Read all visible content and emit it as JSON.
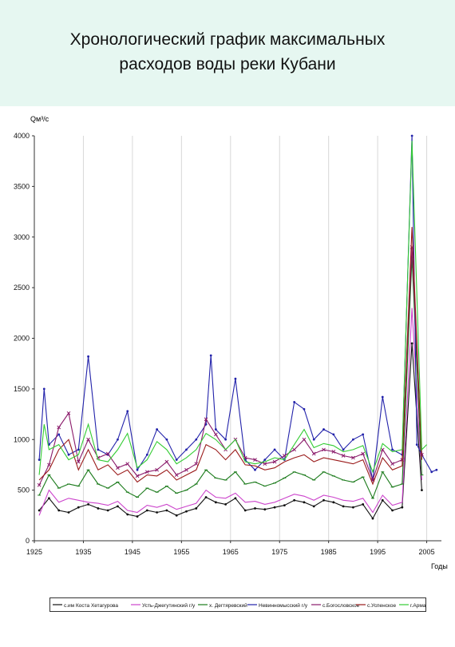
{
  "slide": {
    "title_line1": "Хронологический график максимальных",
    "title_line2": "расходов воды реки Кубани"
  },
  "chart_data": {
    "type": "line",
    "title": "",
    "ylabel": "Qм³/с",
    "xlabel": "Годы",
    "xlim": [
      1925,
      2008
    ],
    "ylim": [
      0,
      4000
    ],
    "x_ticks": [
      1925,
      1935,
      1945,
      1955,
      1965,
      1975,
      1985,
      1995,
      2005
    ],
    "y_ticks": [
      0,
      500,
      1000,
      1500,
      2000,
      2500,
      3000,
      3500,
      4000
    ],
    "grid": "vertical",
    "legend_position": "bottom",
    "series": [
      {
        "name": "с.им Коста Хетагурова",
        "color": "#111111",
        "marker": "dot",
        "x": [
          1926,
          1928,
          1930,
          1932,
          1934,
          1936,
          1938,
          1940,
          1942,
          1944,
          1946,
          1948,
          1950,
          1952,
          1954,
          1956,
          1958,
          1960,
          1962,
          1964,
          1966,
          1968,
          1970,
          1972,
          1974,
          1976,
          1978,
          1980,
          1982,
          1984,
          1986,
          1988,
          1990,
          1992,
          1994,
          1996,
          1998,
          2000,
          2002,
          2004
        ],
        "y": [
          300,
          420,
          300,
          280,
          330,
          360,
          320,
          300,
          340,
          260,
          240,
          300,
          280,
          300,
          250,
          290,
          320,
          430,
          380,
          360,
          420,
          300,
          320,
          310,
          330,
          350,
          400,
          380,
          340,
          400,
          380,
          340,
          330,
          360,
          220,
          400,
          300,
          330,
          1950,
          500
        ]
      },
      {
        "name": "Усть-Джегутинский г/у",
        "color": "#cc44cc",
        "marker": "none",
        "x": [
          1926,
          1928,
          1930,
          1932,
          1934,
          1936,
          1938,
          1940,
          1942,
          1944,
          1946,
          1948,
          1950,
          1952,
          1954,
          1956,
          1958,
          1960,
          1962,
          1964,
          1966,
          1968,
          1970,
          1972,
          1974,
          1976,
          1978,
          1980,
          1982,
          1984,
          1986,
          1988,
          1990,
          1992,
          1994,
          1996,
          1998,
          2000,
          2002,
          2004
        ],
        "y": [
          250,
          500,
          380,
          420,
          400,
          380,
          370,
          350,
          390,
          300,
          280,
          350,
          330,
          360,
          310,
          340,
          370,
          500,
          430,
          420,
          470,
          380,
          390,
          360,
          380,
          420,
          460,
          440,
          400,
          450,
          430,
          400,
          390,
          420,
          280,
          450,
          350,
          380,
          2300,
          600
        ]
      },
      {
        "name": "х. Дегтяревский",
        "color": "#1a7a1a",
        "marker": "dash",
        "x": [
          1926,
          1928,
          1930,
          1932,
          1934,
          1936,
          1938,
          1940,
          1942,
          1944,
          1946,
          1948,
          1950,
          1952,
          1954,
          1956,
          1958,
          1960,
          1962,
          1964,
          1966,
          1968,
          1970,
          1972,
          1974,
          1976,
          1978,
          1980,
          1982,
          1984,
          1986,
          1988,
          1990,
          1992,
          1994,
          1996,
          1998,
          2000,
          2002,
          2004
        ],
        "y": [
          450,
          650,
          520,
          560,
          540,
          700,
          560,
          520,
          580,
          480,
          430,
          520,
          480,
          540,
          470,
          500,
          560,
          700,
          620,
          600,
          680,
          560,
          580,
          540,
          570,
          620,
          680,
          650,
          600,
          680,
          640,
          600,
          580,
          630,
          420,
          680,
          530,
          560,
          2800,
          650
        ]
      },
      {
        "name": "Невинномысский г/у",
        "color": "#2222aa",
        "marker": "dot",
        "x": [
          1926,
          1927,
          1928,
          1930,
          1932,
          1934,
          1936,
          1938,
          1940,
          1942,
          1944,
          1946,
          1948,
          1950,
          1952,
          1954,
          1956,
          1958,
          1960,
          1961,
          1962,
          1964,
          1966,
          1968,
          1970,
          1972,
          1974,
          1976,
          1978,
          1980,
          1982,
          1984,
          1986,
          1988,
          1990,
          1992,
          1994,
          1996,
          1998,
          2000,
          2002,
          2003,
          2004,
          2006,
          2007
        ],
        "y": [
          800,
          1500,
          950,
          1050,
          850,
          900,
          1820,
          900,
          850,
          1000,
          1280,
          700,
          850,
          1100,
          1000,
          800,
          900,
          1000,
          1150,
          1830,
          1100,
          1000,
          1600,
          800,
          700,
          800,
          900,
          800,
          1370,
          1300,
          1000,
          1100,
          1050,
          900,
          1000,
          1050,
          600,
          1420,
          900,
          850,
          4000,
          950,
          850,
          680,
          700
        ]
      },
      {
        "name": "с.Богословское",
        "color": "#8a1a6a",
        "marker": "x",
        "x": [
          1926,
          1928,
          1930,
          1932,
          1934,
          1936,
          1938,
          1940,
          1942,
          1944,
          1946,
          1948,
          1950,
          1952,
          1954,
          1956,
          1958,
          1960,
          1962,
          1964,
          1966,
          1968,
          1970,
          1972,
          1974,
          1976,
          1978,
          1980,
          1982,
          1984,
          1986,
          1988,
          1990,
          1992,
          1994,
          1996,
          1998,
          2000,
          2002,
          2004
        ],
        "y": [
          550,
          750,
          1120,
          1260,
          780,
          1000,
          820,
          860,
          720,
          760,
          640,
          680,
          700,
          780,
          650,
          700,
          760,
          1200,
          1050,
          900,
          1000,
          820,
          800,
          760,
          780,
          840,
          900,
          1000,
          860,
          900,
          880,
          840,
          820,
          860,
          600,
          900,
          760,
          800,
          2900,
          850
        ]
      },
      {
        "name": "с.Успенское",
        "color": "#9a1a1a",
        "marker": "none",
        "x": [
          1926,
          1928,
          1930,
          1932,
          1934,
          1936,
          1938,
          1940,
          1942,
          1944,
          1946,
          1948,
          1950,
          1952,
          1954,
          1956,
          1958,
          1960,
          1962,
          1964,
          1966,
          1968,
          1970,
          1972,
          1974,
          1976,
          1978,
          1980,
          1982,
          1984,
          1986,
          1988,
          1990,
          1992,
          1994,
          1996,
          1998,
          2000,
          2002,
          2004
        ],
        "y": [
          600,
          700,
          900,
          1000,
          700,
          900,
          700,
          750,
          650,
          700,
          580,
          650,
          640,
          700,
          600,
          650,
          700,
          950,
          900,
          800,
          900,
          750,
          740,
          700,
          720,
          780,
          820,
          850,
          780,
          820,
          800,
          780,
          760,
          800,
          560,
          820,
          700,
          740,
          3100,
          800
        ]
      },
      {
        "name": "г.Армавир",
        "color": "#33cc33",
        "marker": "none",
        "x": [
          1926,
          1927,
          1928,
          1930,
          1932,
          1934,
          1936,
          1938,
          1940,
          1942,
          1944,
          1946,
          1948,
          1950,
          1952,
          1954,
          1956,
          1958,
          1960,
          1962,
          1964,
          1966,
          1968,
          1970,
          1972,
          1974,
          1976,
          1978,
          1980,
          1982,
          1984,
          1986,
          1988,
          1990,
          1992,
          1994,
          1996,
          1998,
          2000,
          2002,
          2004,
          2005
        ],
        "y": [
          650,
          1150,
          900,
          950,
          800,
          850,
          1150,
          800,
          780,
          900,
          1060,
          720,
          800,
          980,
          900,
          760,
          820,
          900,
          1060,
          1000,
          900,
          1000,
          780,
          760,
          780,
          820,
          800,
          950,
          1100,
          920,
          960,
          940,
          880,
          900,
          940,
          680,
          960,
          880,
          900,
          3950,
          900,
          950
        ]
      }
    ]
  }
}
